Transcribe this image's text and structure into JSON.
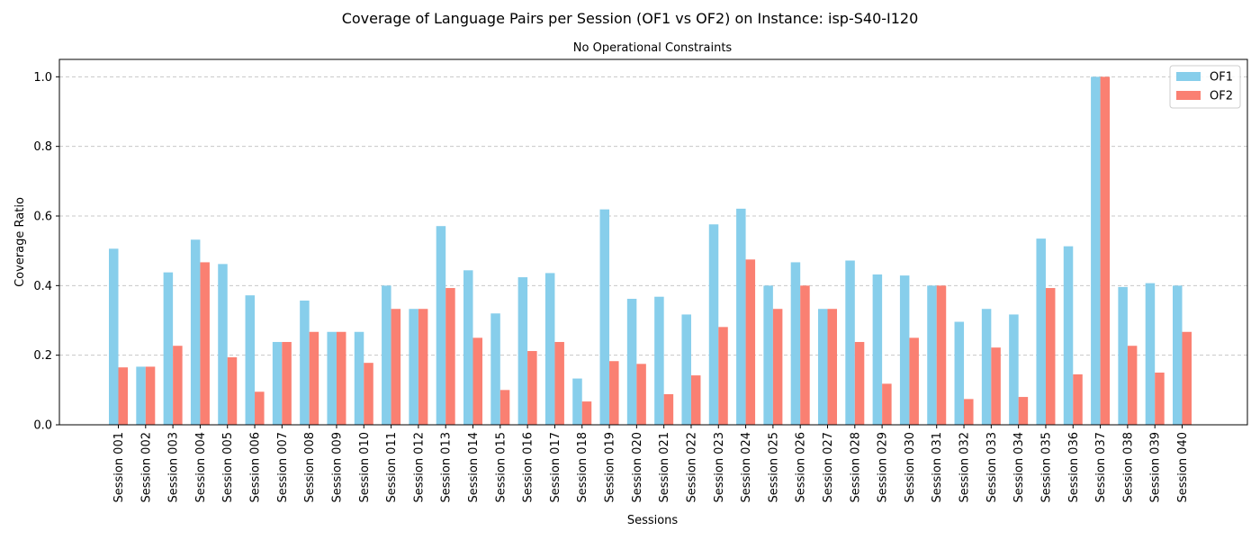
{
  "chart_data": {
    "type": "bar",
    "title": "Coverage of Language Pairs per Session (OF1 vs OF2) on Instance: isp-S40-I120",
    "subtitle": "No Operational Constraints",
    "xlabel": "Sessions",
    "ylabel": "Coverage Ratio",
    "ylim": [
      0,
      1.05
    ],
    "yticks": [
      0.0,
      0.2,
      0.4,
      0.6,
      0.8,
      1.0
    ],
    "ytick_labels": [
      "0.0",
      "0.2",
      "0.4",
      "0.6",
      "0.8",
      "1.0"
    ],
    "grid": "y-dashed",
    "legend_position": "top-right",
    "categories": [
      "Session 001",
      "Session 002",
      "Session 003",
      "Session 004",
      "Session 005",
      "Session 006",
      "Session 007",
      "Session 008",
      "Session 009",
      "Session 010",
      "Session 011",
      "Session 012",
      "Session 013",
      "Session 014",
      "Session 015",
      "Session 016",
      "Session 017",
      "Session 018",
      "Session 019",
      "Session 020",
      "Session 021",
      "Session 022",
      "Session 023",
      "Session 024",
      "Session 025",
      "Session 026",
      "Session 027",
      "Session 028",
      "Session 029",
      "Session 030",
      "Session 031",
      "Session 032",
      "Session 033",
      "Session 034",
      "Session 035",
      "Session 036",
      "Session 037",
      "Session 038",
      "Session 039",
      "Session 040"
    ],
    "series": [
      {
        "name": "OF1",
        "color": "#87ceeb",
        "values": [
          0.506,
          0.167,
          0.438,
          0.532,
          0.462,
          0.372,
          0.238,
          0.357,
          0.267,
          0.267,
          0.4,
          0.333,
          0.571,
          0.444,
          0.32,
          0.424,
          0.436,
          0.133,
          0.619,
          0.362,
          0.368,
          0.317,
          0.576,
          0.621,
          0.4,
          0.467,
          0.333,
          0.472,
          0.432,
          0.429,
          0.4,
          0.296,
          0.333,
          0.317,
          0.535,
          0.513,
          1.0,
          0.396,
          0.407,
          0.4
        ]
      },
      {
        "name": "OF2",
        "color": "#fa8072",
        "values": [
          0.165,
          0.167,
          0.227,
          0.467,
          0.194,
          0.095,
          0.238,
          0.267,
          0.267,
          0.178,
          0.333,
          0.333,
          0.393,
          0.25,
          0.1,
          0.212,
          0.238,
          0.067,
          0.183,
          0.175,
          0.088,
          0.142,
          0.281,
          0.475,
          0.333,
          0.4,
          0.333,
          0.238,
          0.118,
          0.25,
          0.4,
          0.074,
          0.222,
          0.08,
          0.393,
          0.145,
          1.0,
          0.227,
          0.15,
          0.267
        ]
      }
    ]
  }
}
